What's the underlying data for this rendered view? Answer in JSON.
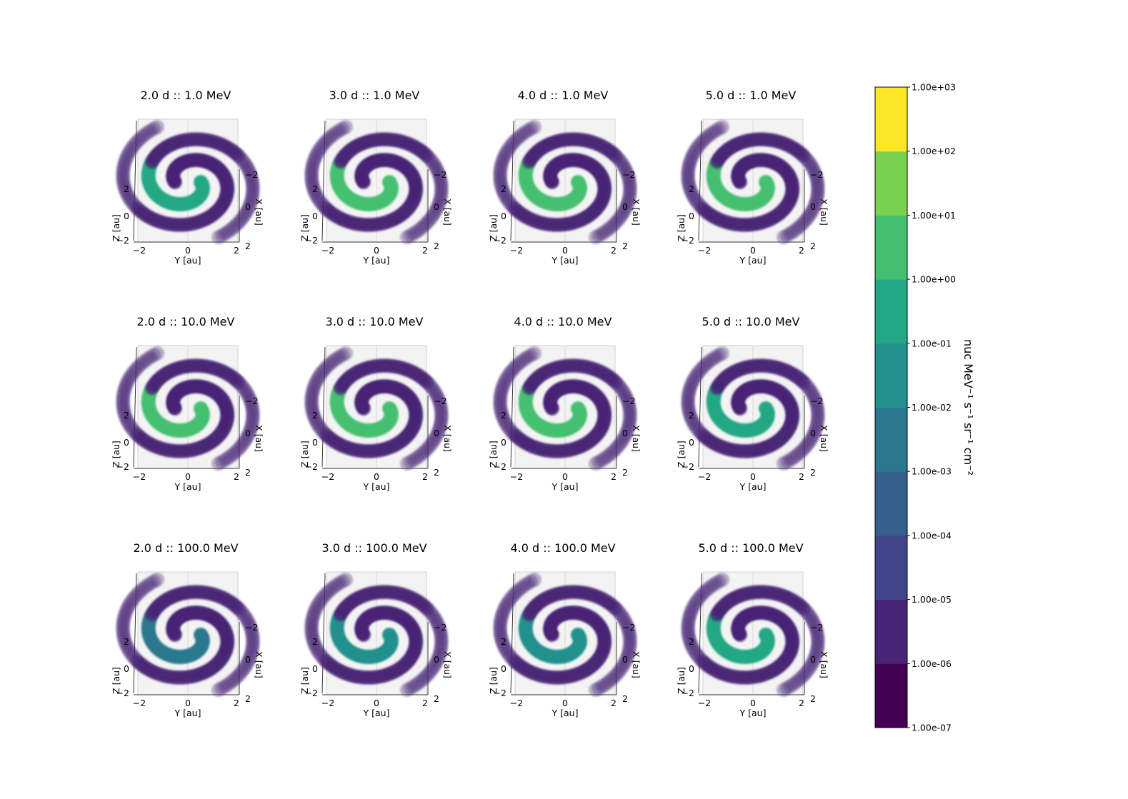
{
  "chart_data": {
    "type": "scatter",
    "layout": "3 rows x 4 columns of 3D scatter panels with shared colorbar",
    "panels": [
      {
        "title": "2.0 d :: 1.0 MeV",
        "time_d": 2.0,
        "energy_mev": 1.0,
        "peak_value": 0.1
      },
      {
        "title": "3.0 d :: 1.0 MeV",
        "time_d": 3.0,
        "energy_mev": 1.0,
        "peak_value": 1.0
      },
      {
        "title": "4.0 d :: 1.0 MeV",
        "time_d": 4.0,
        "energy_mev": 1.0,
        "peak_value": 1.0
      },
      {
        "title": "5.0 d :: 1.0 MeV",
        "time_d": 5.0,
        "energy_mev": 1.0,
        "peak_value": 1.0
      },
      {
        "title": "2.0 d :: 10.0 MeV",
        "time_d": 2.0,
        "energy_mev": 10.0,
        "peak_value": 1.0
      },
      {
        "title": "3.0 d :: 10.0 MeV",
        "time_d": 3.0,
        "energy_mev": 10.0,
        "peak_value": 1.0
      },
      {
        "title": "4.0 d :: 10.0 MeV",
        "time_d": 4.0,
        "energy_mev": 10.0,
        "peak_value": 1.0
      },
      {
        "title": "5.0 d :: 10.0 MeV",
        "time_d": 5.0,
        "energy_mev": 10.0,
        "peak_value": 0.1
      },
      {
        "title": "2.0 d :: 100.0 MeV",
        "time_d": 2.0,
        "energy_mev": 100.0,
        "peak_value": 0.001
      },
      {
        "title": "3.0 d :: 100.0 MeV",
        "time_d": 3.0,
        "energy_mev": 100.0,
        "peak_value": 0.01
      },
      {
        "title": "4.0 d :: 100.0 MeV",
        "time_d": 4.0,
        "energy_mev": 100.0,
        "peak_value": 0.01
      },
      {
        "title": "5.0 d :: 100.0 MeV",
        "time_d": 5.0,
        "energy_mev": 100.0,
        "peak_value": 0.1
      }
    ],
    "axes": {
      "xlabel": "Y [au]",
      "ylabel": "Z [au]",
      "zlabel": "X [au]",
      "y_ticks": [
        "−2",
        "0",
        "2"
      ],
      "z_ticks": [
        "−2",
        "0",
        "2"
      ],
      "x_ticks": [
        "−2",
        "0",
        "2"
      ],
      "range": [
        -2,
        2
      ]
    },
    "colorbar": {
      "label": "nuc MeV⁻¹ s⁻¹ sr⁻¹ cm⁻²",
      "scale": "log",
      "range": [
        1e-07,
        1000
      ],
      "ticks": [
        "1.00e-07",
        "1.00e-06",
        "1.00e-05",
        "1.00e-04",
        "1.00e-03",
        "1.00e-02",
        "1.00e-01",
        "1.00e+00",
        "1.00e+01",
        "1.00e+02",
        "1.00e+03"
      ],
      "colors": [
        "#440154",
        "#482475",
        "#414487",
        "#355f8d",
        "#2a788e",
        "#21918c",
        "#22a884",
        "#44bf70",
        "#7ad151",
        "#bddf26",
        "#fde725"
      ]
    }
  }
}
